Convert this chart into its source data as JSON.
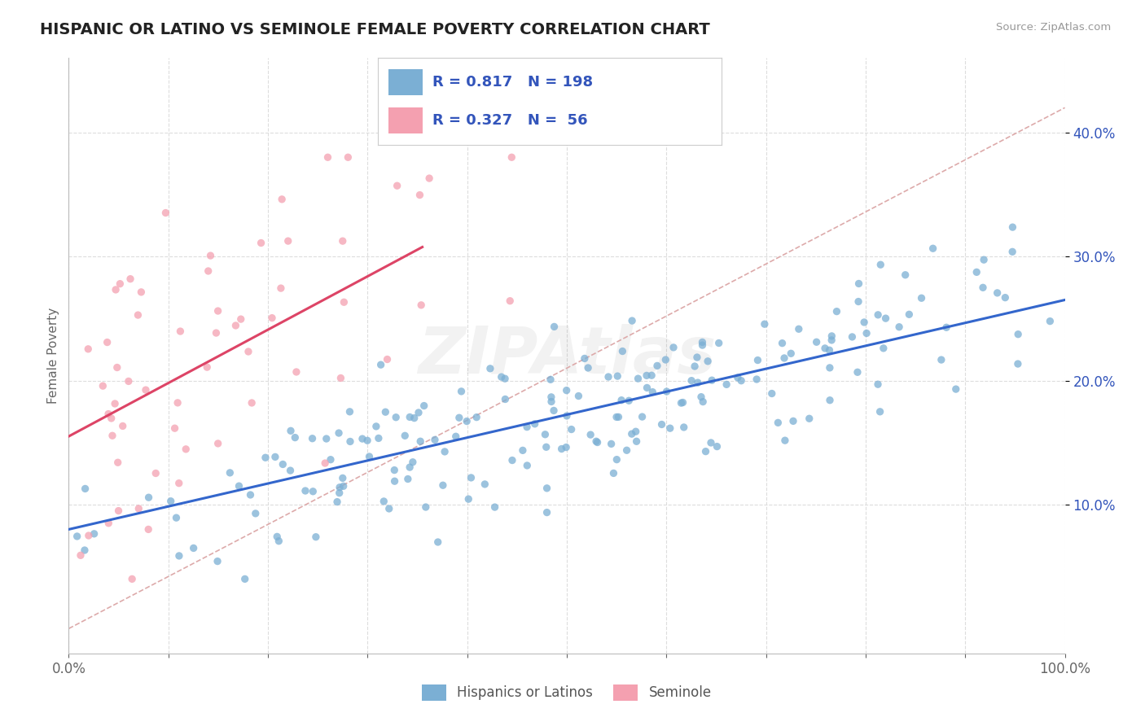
{
  "title": "HISPANIC OR LATINO VS SEMINOLE FEMALE POVERTY CORRELATION CHART",
  "source": "Source: ZipAtlas.com",
  "ylabel": "Female Poverty",
  "xlim": [
    0.0,
    1.0
  ],
  "ylim": [
    -0.02,
    0.46
  ],
  "yticks": [
    0.1,
    0.2,
    0.3,
    0.4
  ],
  "yticklabels": [
    "10.0%",
    "20.0%",
    "30.0%",
    "40.0%"
  ],
  "blue_color": "#7BAFD4",
  "pink_color": "#F4A0B0",
  "blue_scatter_alpha": 0.75,
  "pink_scatter_alpha": 0.75,
  "scatter_size": 45,
  "R_blue": 0.817,
  "N_blue": 198,
  "R_pink": 0.327,
  "N_pink": 56,
  "legend_color": "#3355BB",
  "background_color": "#FFFFFF",
  "grid_color": "#DDDDDD",
  "watermark": "ZIPAtlas",
  "blue_line_color": "#3366CC",
  "pink_line_color": "#DD4466",
  "ref_line_color": "#DDAAAA",
  "title_fontsize": 14,
  "axis_label_fontsize": 11
}
